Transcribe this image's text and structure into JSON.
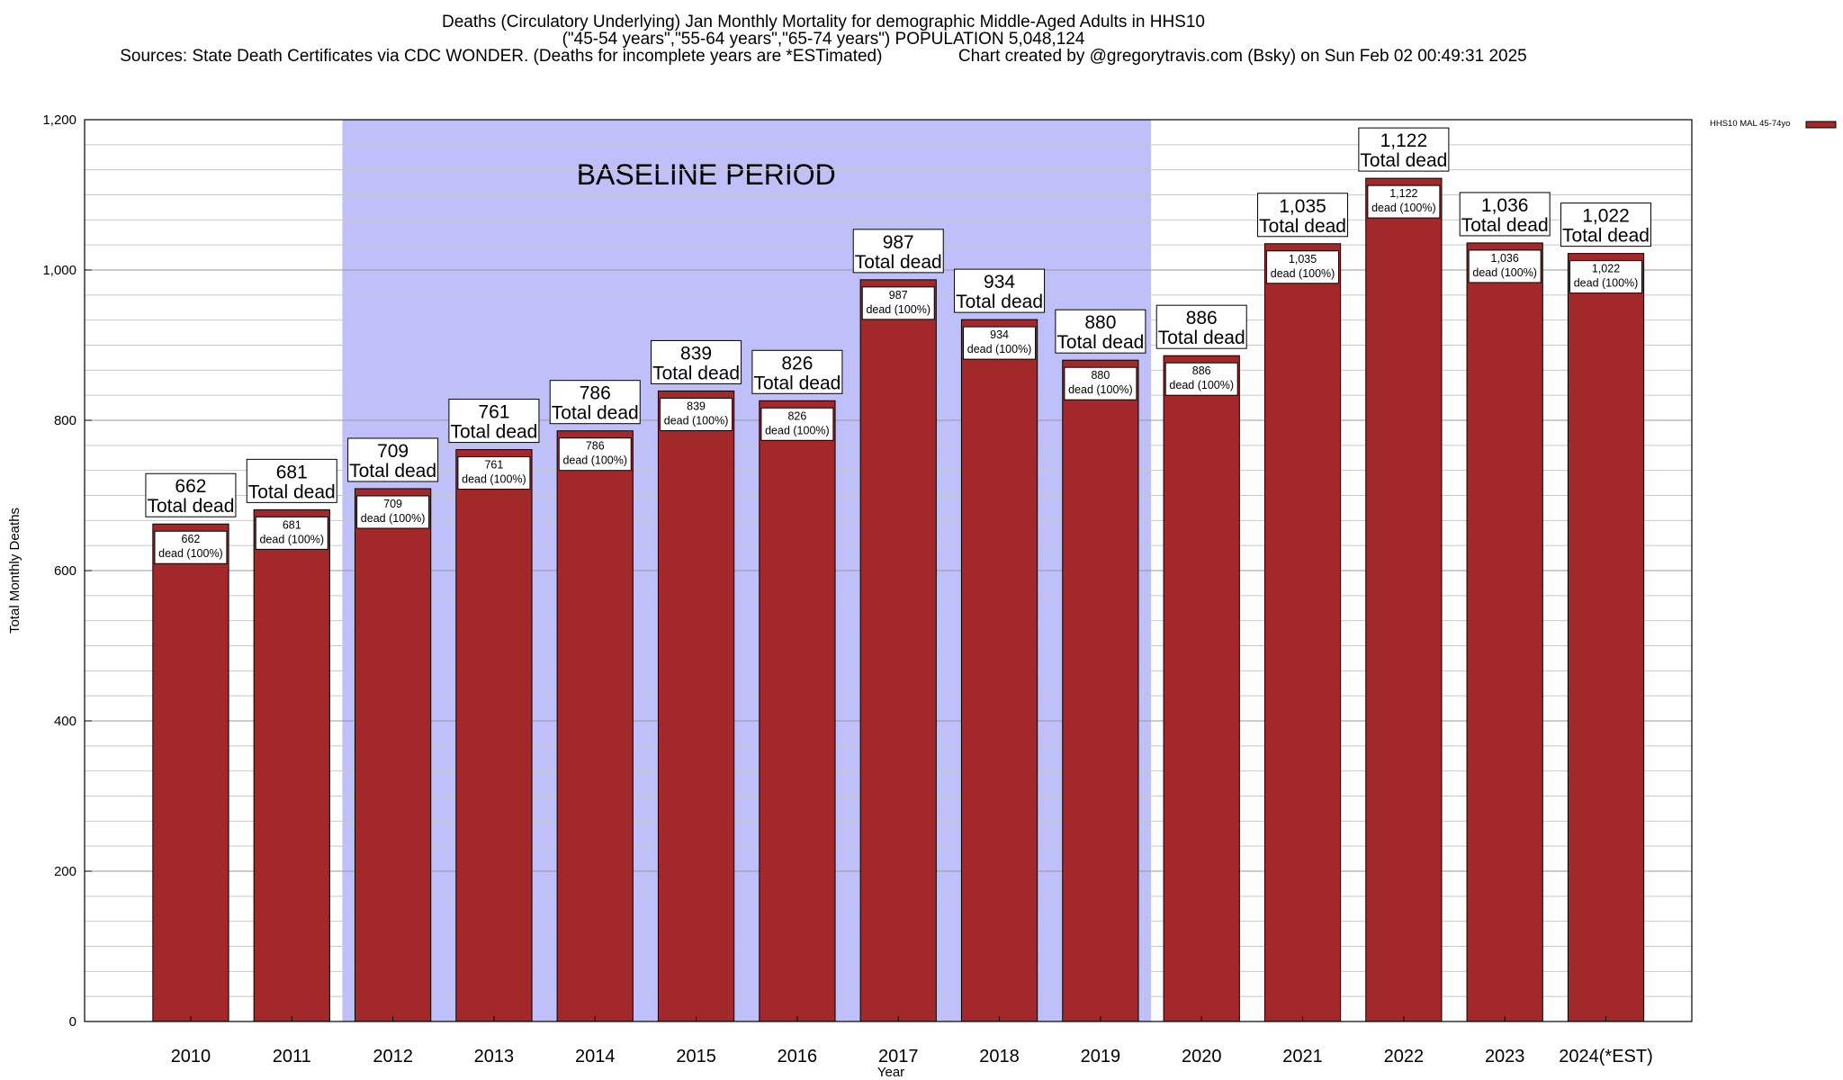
{
  "header": {
    "title_line1": "Deaths (Circulatory Underlying) Jan Monthly Mortality for demographic Middle-Aged Adults in HHS10",
    "title_line2": "(\"45-54 years\",\"55-64 years\",\"65-74 years\") POPULATION 5,048,124",
    "sources": "Sources: State Death Certificates via CDC WONDER. (Deaths for incomplete years are *ESTimated)",
    "credit": "Chart created by @gregorytravis.com (Bsky) on Sun Feb 02 00:49:31 2025"
  },
  "chart_data": {
    "type": "bar",
    "xlabel": "Year",
    "ylabel": "Total Monthly Deaths",
    "ylim": [
      0,
      1200
    ],
    "yticks": [
      0,
      200,
      400,
      600,
      800,
      1000,
      1200
    ],
    "ytick_labels": [
      "0",
      "200",
      "400",
      "600",
      "800",
      "1,000",
      "1,200"
    ],
    "grid": true,
    "categories": [
      "2010",
      "2011",
      "2012",
      "2013",
      "2014",
      "2015",
      "2016",
      "2017",
      "2018",
      "2019",
      "2020",
      "2021",
      "2022",
      "2023",
      "2024(*EST)"
    ],
    "series": [
      {
        "name": "HHS10 MAL 45-74yo",
        "color": "#a3282a",
        "values": [
          662,
          681,
          709,
          761,
          786,
          839,
          826,
          987,
          934,
          880,
          886,
          1035,
          1122,
          1036,
          1022
        ],
        "value_labels": [
          "662",
          "681",
          "709",
          "761",
          "786",
          "839",
          "826",
          "987",
          "934",
          "880",
          "886",
          "1,035",
          "1,122",
          "1,036",
          "1,022"
        ]
      }
    ],
    "annotation_total": "Total dead",
    "annotation_share": "dead (100%)",
    "highlight": {
      "label": "BASELINE PERIOD",
      "from": "2012",
      "to": "2019",
      "color": "#bfbff9"
    },
    "legend_position": "top-right"
  }
}
